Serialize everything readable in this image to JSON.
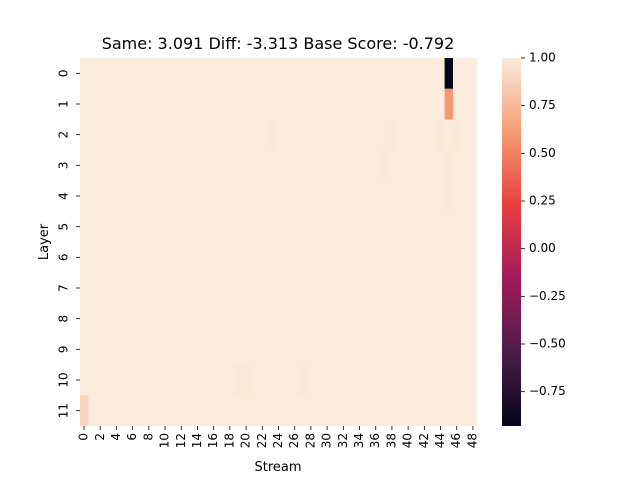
{
  "chart_data": {
    "type": "heatmap",
    "title": "Same: 3.091 Diff: -3.313 Base Score: -0.792",
    "xlabel": "Stream",
    "ylabel": "Layer",
    "n_cols": 49,
    "n_rows": 12,
    "x_tick_labels": [
      "0",
      "2",
      "4",
      "6",
      "8",
      "10",
      "12",
      "14",
      "16",
      "18",
      "20",
      "22",
      "24",
      "26",
      "28",
      "30",
      "32",
      "34",
      "36",
      "38",
      "40",
      "42",
      "44",
      "46",
      "48"
    ],
    "y_tick_labels": [
      "0",
      "1",
      "2",
      "3",
      "4",
      "5",
      "6",
      "7",
      "8",
      "9",
      "10",
      "11"
    ],
    "default_value": 1.0,
    "cells": [
      {
        "layer": 0,
        "stream": 45,
        "value": -0.93
      },
      {
        "layer": 1,
        "stream": 45,
        "value": 0.6
      },
      {
        "layer": 2,
        "stream": 23,
        "value": 0.985
      },
      {
        "layer": 2,
        "stream": 38,
        "value": 0.985
      },
      {
        "layer": 2,
        "stream": 44,
        "value": 0.98
      },
      {
        "layer": 2,
        "stream": 46,
        "value": 0.985
      },
      {
        "layer": 3,
        "stream": 37,
        "value": 0.985
      },
      {
        "layer": 3,
        "stream": 45,
        "value": 0.985
      },
      {
        "layer": 4,
        "stream": 45,
        "value": 0.99
      },
      {
        "layer": 10,
        "stream": 19,
        "value": 0.985
      },
      {
        "layer": 10,
        "stream": 20,
        "value": 0.985
      },
      {
        "layer": 10,
        "stream": 27,
        "value": 0.985
      },
      {
        "layer": 11,
        "stream": 0,
        "value": 0.88
      }
    ],
    "vmin": -0.93,
    "vmax": 1.0,
    "colorbar_ticks": [
      "1.00",
      "0.75",
      "0.50",
      "0.25",
      "0.00",
      "−0.25",
      "−0.50",
      "−0.75"
    ],
    "colorbar_tick_values": [
      1.0,
      0.75,
      0.5,
      0.25,
      0.0,
      -0.25,
      -0.5,
      -0.75
    ],
    "colormap": "rocket",
    "colormap_stops": [
      "#03051a",
      "#4c1d4b",
      "#a11a5b",
      "#e83f3f",
      "#f69c73",
      "#faebdd"
    ]
  }
}
